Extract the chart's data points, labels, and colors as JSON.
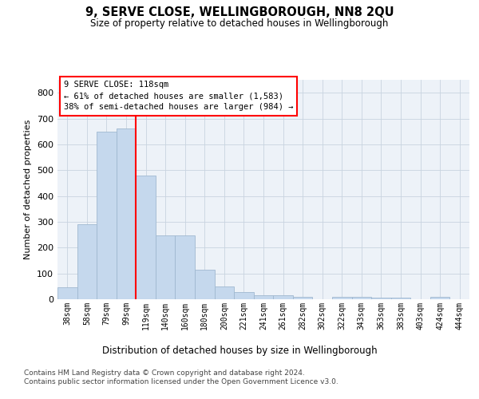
{
  "title": "9, SERVE CLOSE, WELLINGBOROUGH, NN8 2QU",
  "subtitle": "Size of property relative to detached houses in Wellingborough",
  "xlabel": "Distribution of detached houses by size in Wellingborough",
  "ylabel": "Number of detached properties",
  "categories": [
    "38sqm",
    "58sqm",
    "79sqm",
    "99sqm",
    "119sqm",
    "140sqm",
    "160sqm",
    "180sqm",
    "200sqm",
    "221sqm",
    "241sqm",
    "261sqm",
    "282sqm",
    "302sqm",
    "322sqm",
    "343sqm",
    "363sqm",
    "383sqm",
    "403sqm",
    "424sqm",
    "444sqm"
  ],
  "values": [
    45,
    290,
    650,
    660,
    480,
    248,
    248,
    113,
    50,
    27,
    15,
    14,
    8,
    0,
    8,
    8,
    5,
    5,
    0,
    8,
    0
  ],
  "bar_color": "#c5d8ed",
  "bar_edge_color": "#a0b8d0",
  "grid_color": "#c8d4e0",
  "background_color": "#edf2f8",
  "annotation_line_color": "red",
  "annotation_box_text": "9 SERVE CLOSE: 118sqm\n← 61% of detached houses are smaller (1,583)\n38% of semi-detached houses are larger (984) →",
  "ylim": [
    0,
    850
  ],
  "yticks": [
    0,
    100,
    200,
    300,
    400,
    500,
    600,
    700,
    800
  ],
  "footer_line1": "Contains HM Land Registry data © Crown copyright and database right 2024.",
  "footer_line2": "Contains public sector information licensed under the Open Government Licence v3.0."
}
